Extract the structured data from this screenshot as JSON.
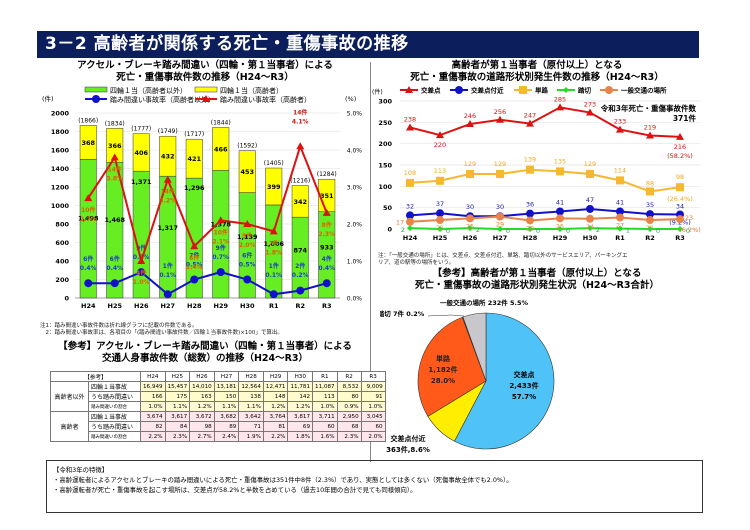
{
  "header": {
    "title": "3－2  高齢者が関係する死亡・重傷事故の推移"
  },
  "left_chart": {
    "title_line1": "アクセル・ブレーキ踏み間違い（四輪・第１当事者）による",
    "title_line2": "死亡・重傷事故件数の推移（H24～R3）",
    "y_unit_left": "(件)",
    "y_unit_right": "(%)",
    "legend": [
      {
        "label": "四輪１当（高齢者以外）",
        "color": "#66ee22",
        "kind": "box"
      },
      {
        "label": "四輪１当（高齢者）",
        "color": "#ffff00",
        "kind": "box"
      },
      {
        "label": "踏み間違い事故率（高齢者以外）",
        "color": "#1111cc",
        "kind": "line"
      },
      {
        "label": "踏み間違い事故率（高齢者）",
        "color": "#dd1111",
        "kind": "line"
      }
    ],
    "notes": [
      "注1：踏み間違い事故件数は折れ線グラフに記載の件数である。",
      "　2：踏み間違い事故率は、各項目の「(踏み間違い事故件数／四輪１当事故件数)×100」で算出。"
    ]
  },
  "ref_table": {
    "title_line1": "【参考】アクセル・ブレーキ踏み間違い（四輪・第１当事者）による",
    "title_line2": "交通人身事故件数（総数）の推移（H24～R3）",
    "corner": "【参考】",
    "columns": [
      "H24",
      "H25",
      "H26",
      "H27",
      "H28",
      "H29",
      "H30",
      "R1",
      "R2",
      "R3"
    ],
    "groups": [
      {
        "label": "高齢者以外",
        "rows": [
          {
            "label": "四輪１当事故",
            "values": [
              "16,949",
              "15,457",
              "14,010",
              "13,181",
              "12,564",
              "12,471",
              "11,781",
              "11,087",
              "8,532",
              "9,009"
            ]
          },
          {
            "label": "うち踏み間違い",
            "values": [
              "166",
              "175",
              "163",
              "150",
              "138",
              "148",
              "142",
              "113",
              "80",
              "91"
            ]
          },
          {
            "label": "踏み間違いの割合",
            "values": [
              "1.0%",
              "1.1%",
              "1.2%",
              "1.1%",
              "1.1%",
              "1.2%",
              "1.2%",
              "1.0%",
              "0.9%",
              "1.0%"
            ]
          }
        ]
      },
      {
        "label": "高齢者",
        "rows": [
          {
            "label": "四輪１当事故",
            "values": [
              "3,674",
              "3,617",
              "3,672",
              "3,682",
              "3,642",
              "3,764",
              "3,817",
              "3,711",
              "2,950",
              "3,045"
            ]
          },
          {
            "label": "うち踏み間違い",
            "values": [
              "82",
              "84",
              "98",
              "89",
              "71",
              "81",
              "69",
              "60",
              "68",
              "60"
            ]
          },
          {
            "label": "踏み間違いの割合",
            "values": [
              "2.2%",
              "2.3%",
              "2.7%",
              "2.4%",
              "1.9%",
              "2.2%",
              "1.8%",
              "1.6%",
              "2.3%",
              "2.0%"
            ]
          }
        ]
      }
    ]
  },
  "right_chart": {
    "title_line1": "高齢者が第１当事者（原付以上）となる",
    "title_line2": "死亡・重傷事故の道路形状別発生件数の推移（H24～R3）",
    "y_unit": "(件)",
    "annotation_line1": "令和3年死亡・重傷事故件数",
    "annotation_line2": "371件",
    "note_line1": "注：「一般交通の場所」とは、交差点、交差点付近、単路、踏切以外のサービスエリア、パーキングエ",
    "note_line2": "リア、道の駅等の場所をいう。"
  },
  "pie_section": {
    "title_line1": "【参考】高齢者が第１当事者（原付以上）となる",
    "title_line2": "死亡・重傷事故の道路形状別発生状況（H24～R3合計）"
  },
  "summary": {
    "heading": "【令和3年の特徴】",
    "bullets": [
      "・高齢運転者によるアクセルとブレーキの踏み間違いによる死亡・重傷事故は351件中8件（2.3%）であり、実態としては多くない（死傷事故全体でも2.0%）。",
      "・高齢運転者が死亡・重傷事故を起こす場所は、交差点が58.2%と半数を占めている（過去10年間の合計で見ても同様傾向）。"
    ]
  },
  "chart_data": [
    {
      "type": "bar",
      "stacked": true,
      "title": "アクセル・ブレーキ踏み間違い（四輪・第１当事者）による死亡・重傷事故件数の推移（H24～R3）",
      "categories": [
        "H24",
        "H25",
        "H26",
        "H27",
        "H28",
        "H29",
        "H30",
        "R1",
        "R2",
        "R3"
      ],
      "ylabel": "(件)",
      "ylim": [
        0,
        2000
      ],
      "yticks": [
        0,
        200,
        400,
        600,
        800,
        1000,
        1200,
        1400,
        1600,
        1800,
        2000
      ],
      "y2label": "(%)",
      "y2lim": [
        0,
        5.0
      ],
      "y2ticks": [
        "0.0%",
        "1.0%",
        "2.0%",
        "3.0%",
        "4.0%",
        "5.0%"
      ],
      "totals": [
        "(1866)",
        "(1834)",
        "(1777)",
        "(1749)",
        "(1717)",
        "(1844)",
        "(1592)",
        "(1405)",
        "(1216)",
        "(1284)"
      ],
      "series": [
        {
          "name": "四輪１当（高齢者以外）",
          "color": "#66ee22",
          "values": [
            1498,
            1468,
            1371,
            1317,
            1296,
            1378,
            1139,
            1006,
            874,
            933
          ],
          "labels": [
            "1,498",
            "1,468",
            "1,371",
            "1,317",
            "1,296",
            "1,378",
            "1,139",
            "1,006",
            "874",
            "933"
          ]
        },
        {
          "name": "四輪１当（高齢者）",
          "color": "#ffff00",
          "values": [
            368,
            366,
            406,
            432,
            421,
            466,
            453,
            399,
            342,
            351
          ],
          "labels": [
            "368",
            "366",
            "406",
            "432",
            "421",
            "466",
            "453",
            "399",
            "342",
            "351"
          ]
        }
      ],
      "line_series": [
        {
          "name": "踏み間違い事故率（高齢者以外）",
          "color": "#1111cc",
          "axis": "right",
          "values": [
            0.4,
            0.4,
            0.7,
            0.1,
            0.5,
            0.7,
            0.5,
            0.1,
            0.2,
            0.4
          ],
          "counts": [
            "6件",
            "6件",
            "9件",
            "1件",
            "7件",
            "9件",
            "6件",
            "1件",
            "2件",
            "4件"
          ],
          "labels": [
            "0.4%",
            "0.4%",
            "0.7%",
            "0.1%",
            "0.5%",
            "0.7%",
            "0.5%",
            "0.1%",
            "0.2%",
            "0.4%"
          ]
        },
        {
          "name": "踏み間違い事故率（高齢者）",
          "color": "#dd1111",
          "axis": "right",
          "values": [
            2.7,
            3.8,
            1.0,
            3.2,
            1.4,
            2.1,
            2.0,
            1.8,
            4.1,
            2.3
          ],
          "counts": [
            "10件",
            "14件",
            "4件",
            "14件",
            "6件",
            "10件",
            "9件",
            "7件",
            "14件",
            "8件"
          ],
          "labels": [
            "2.7%",
            "3.8%",
            "1.0%",
            "3.2%",
            "1.4%",
            "2.1%",
            "2.0%",
            "1.8%",
            "4.1%",
            "2.3%"
          ]
        }
      ]
    },
    {
      "type": "line",
      "title": "高齢者が第１当事者（原付以上）となる死亡・重傷事故の道路形状別発生件数の推移（H24～R3）",
      "categories": [
        "H24",
        "H25",
        "H26",
        "H27",
        "H28",
        "H29",
        "H30",
        "R1",
        "R2",
        "R3"
      ],
      "ylabel": "(件)",
      "ylim": [
        0,
        300
      ],
      "yticks": [
        0,
        50,
        100,
        150,
        200,
        250,
        300
      ],
      "legend_position": "top",
      "series": [
        {
          "name": "交差点",
          "color": "#dd1111",
          "marker": "triangle",
          "values": [
            238,
            220,
            246,
            256,
            247,
            285,
            273,
            233,
            219,
            216
          ],
          "last_note": "(58.2%)"
        },
        {
          "name": "交差点付近",
          "color": "#1111cc",
          "marker": "circle",
          "values": [
            32,
            37,
            30,
            30,
            36,
            41,
            47,
            41,
            35,
            34
          ],
          "last_note": "(9.2%)"
        },
        {
          "name": "単路",
          "color": "#f5b82e",
          "marker": "square",
          "values": [
            108,
            113,
            129,
            129,
            139,
            135,
            129,
            114,
            88,
            98
          ],
          "last_note": "(26.4%)"
        },
        {
          "name": "踏切",
          "color": "#22dd22",
          "marker": "diamond",
          "values": [
            2,
            0,
            2,
            0,
            0,
            0,
            2,
            1,
            0,
            0
          ],
          "last_note": ""
        },
        {
          "name": "一般交通の場所",
          "color": "#e8844a",
          "marker": "circle",
          "values": [
            17,
            21,
            25,
            29,
            20,
            25,
            24,
            27,
            21,
            23
          ],
          "last_note": "(6.2%)"
        }
      ]
    },
    {
      "type": "pie",
      "title": "【参考】高齢者が第１当事者（原付以上）となる死亡・重傷事故の道路形状別発生状況（H24～R3合計）",
      "slices": [
        {
          "name": "交差点",
          "value": 2433,
          "count_label": "2,433件",
          "percent": 57.7,
          "percent_label": "57.7%",
          "color": "#4fc3f7"
        },
        {
          "name": "交差点付近",
          "value": 363,
          "count_label": "363件",
          "percent": 8.6,
          "percent_label": "8.6%",
          "color": "#ffee00"
        },
        {
          "name": "単路",
          "value": 1182,
          "count_label": "1,182件",
          "percent": 28.0,
          "percent_label": "28.0%",
          "color": "#ff5a1a"
        },
        {
          "name": "踏切",
          "value": 7,
          "count_label": "7件",
          "percent": 0.2,
          "percent_label": "0.2%",
          "color": "#ffffff"
        },
        {
          "name": "一般交通の場所",
          "value": 232,
          "count_label": "232件",
          "percent": 5.5,
          "percent_label": "5.5%",
          "color": "#c8c8cc"
        }
      ]
    }
  ]
}
